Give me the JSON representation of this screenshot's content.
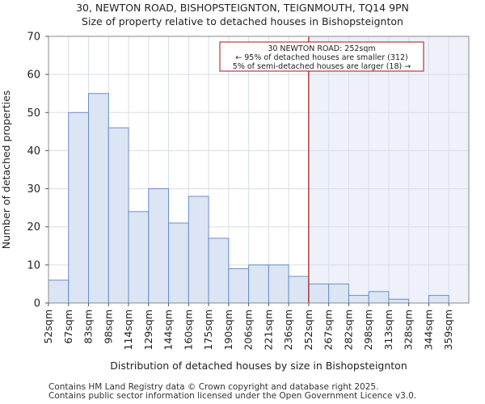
{
  "page": {
    "title_line1": "30, NEWTON ROAD, BISHOPSTEIGNTON, TEIGNMOUTH, TQ14 9PN",
    "title_line2": "Size of property relative to detached houses in Bishopsteignton",
    "footer_line1": "Contains HM Land Registry data © Crown copyright and database right 2025.",
    "footer_line2": "Contains public sector information licensed under the Open Government Licence v3.0."
  },
  "chart_data": {
    "type": "bar",
    "xlabel": "Distribution of detached houses by size in Bishopsteignton",
    "ylabel": "Number of detached properties",
    "ylim": [
      0,
      70
    ],
    "yticks": [
      0,
      10,
      20,
      30,
      40,
      50,
      60,
      70
    ],
    "grid": true,
    "bin_edges": [
      52,
      67,
      83,
      98,
      114,
      129,
      144,
      160,
      175,
      190,
      206,
      221,
      236,
      252,
      267,
      282,
      298,
      313,
      328,
      344,
      359
    ],
    "categories": [
      "52sqm",
      "67sqm",
      "83sqm",
      "98sqm",
      "114sqm",
      "129sqm",
      "144sqm",
      "160sqm",
      "175sqm",
      "190sqm",
      "206sqm",
      "221sqm",
      "236sqm",
      "252sqm",
      "267sqm",
      "282sqm",
      "298sqm",
      "313sqm",
      "328sqm",
      "344sqm",
      "359sqm"
    ],
    "values": [
      6,
      50,
      55,
      46,
      24,
      30,
      21,
      28,
      17,
      9,
      10,
      10,
      7,
      5,
      5,
      2,
      3,
      1,
      0,
      2,
      0
    ],
    "bar_fill": "#dbe5f4",
    "bar_stroke": "#6a8fc8",
    "highlight_fill": "#eef1fa",
    "marker": {
      "value": 252,
      "color": "#aa1111",
      "annotation": [
        "30 NEWTON ROAD: 252sqm",
        "← 95% of detached houses are smaller (312)",
        "5% of semi-detached houses are larger (18) →"
      ]
    }
  }
}
